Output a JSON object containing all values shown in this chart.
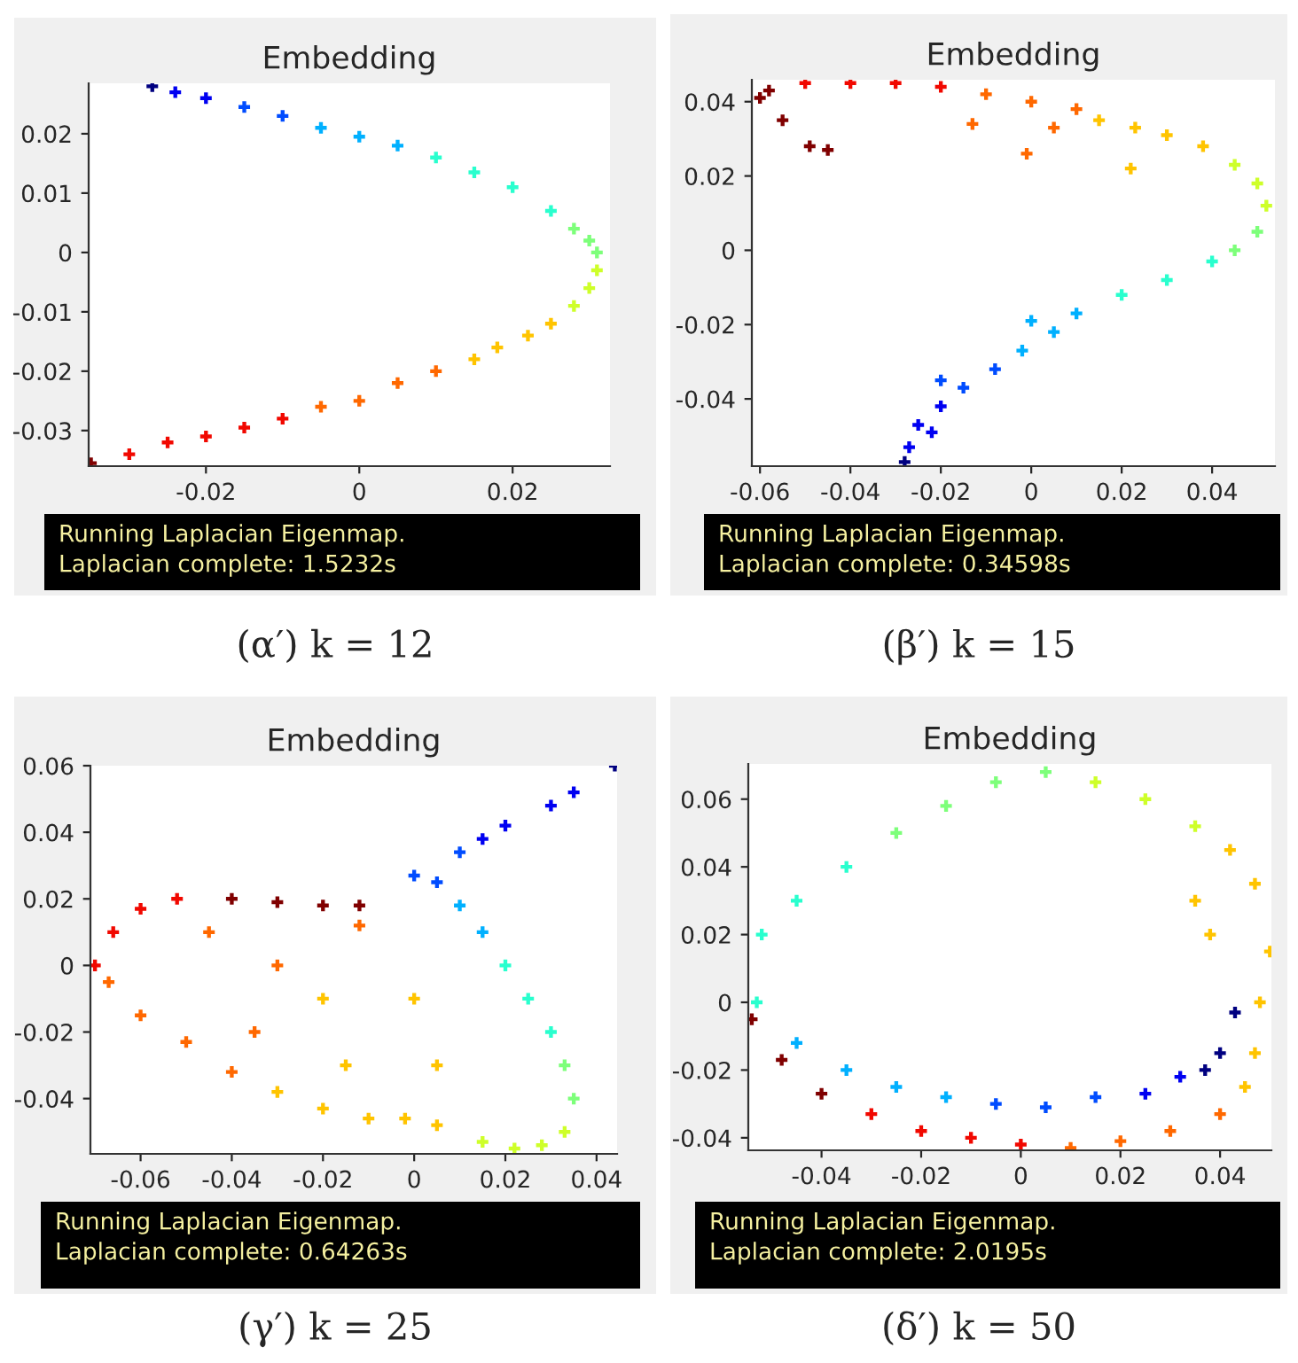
{
  "chart_data": [
    {
      "type": "scatter",
      "title": "Embedding",
      "marker": "cross",
      "xlim": [
        -0.0353,
        0.0327
      ],
      "ylim": [
        -0.036,
        0.0285
      ],
      "xticks": [
        -0.02,
        0,
        0.02
      ],
      "yticks": [
        -0.03,
        -0.02,
        -0.01,
        0,
        0.01,
        0.02
      ],
      "annotations": [
        "Running Laplacian Eigenmap.",
        "Laplacian complete: 1.5232s",
        "(α′) k = 12"
      ],
      "series": [
        {
          "x": [
            -0.027,
            -0.024,
            -0.02,
            -0.015,
            -0.01,
            -0.005,
            0,
            0.005,
            0.01,
            0.015,
            0.02,
            0.025,
            0.028,
            0.03,
            0.031,
            0.031,
            0.03,
            0.028,
            0.025,
            0.022,
            0.018,
            0.015,
            0.01,
            0.005,
            0,
            -0.005,
            -0.01,
            -0.015,
            -0.02,
            -0.025,
            -0.03,
            -0.035
          ],
          "values": [
            0.028,
            0.027,
            0.026,
            0.0245,
            0.023,
            0.021,
            0.0195,
            0.018,
            0.016,
            0.0135,
            0.011,
            0.007,
            0.004,
            0.002,
            0,
            -0.003,
            -0.006,
            -0.009,
            -0.012,
            -0.014,
            -0.016,
            -0.018,
            -0.02,
            -0.022,
            -0.025,
            -0.026,
            -0.028,
            -0.0295,
            -0.031,
            -0.032,
            -0.034,
            -0.0355
          ],
          "colors": [
            "#000080",
            "#0000f1",
            "#0000f1",
            "#004cff",
            "#004cff",
            "#00b0ff",
            "#00b0ff",
            "#00b0ff",
            "#29ffce",
            "#29ffce",
            "#29ffce",
            "#29ffce",
            "#7dff7a",
            "#7dff7a",
            "#7dff7a",
            "#ceff29",
            "#ceff29",
            "#ceff29",
            "#ffc400",
            "#ffc400",
            "#ffc400",
            "#ffc400",
            "#ff6800",
            "#ff6800",
            "#ff6800",
            "#ff6800",
            "#f10800",
            "#f10800",
            "#f10800",
            "#f10800",
            "#f10800",
            "#800000"
          ]
        }
      ]
    },
    {
      "type": "scatter",
      "title": "Embedding",
      "marker": "cross",
      "xlim": [
        -0.0618,
        0.0539
      ],
      "ylim": [
        -0.0581,
        0.0459
      ],
      "xticks": [
        -0.06,
        -0.04,
        -0.02,
        0,
        0.02,
        0.04
      ],
      "yticks": [
        -0.04,
        -0.02,
        0,
        0.02,
        0.04
      ],
      "annotations": [
        "Running Laplacian Eigenmap.",
        "Laplacian complete: 0.34598s",
        "(β′) k = 15"
      ],
      "series": [
        {
          "x": [
            -0.06,
            -0.058,
            -0.055,
            -0.049,
            -0.045,
            -0.05,
            -0.04,
            -0.03,
            -0.02,
            -0.013,
            -0.01,
            0,
            -0.001,
            0.005,
            0.01,
            0.015,
            0.022,
            0.023,
            0.03,
            0.038,
            0.045,
            0.05,
            0.052,
            0.05,
            0.045,
            0.04,
            0.03,
            0.02,
            0.01,
            0,
            0.005,
            -0.002,
            -0.008,
            -0.015,
            -0.02,
            -0.02,
            -0.025,
            -0.027,
            -0.028,
            -0.022
          ],
          "values": [
            0.041,
            0.043,
            0.035,
            0.028,
            0.027,
            0.045,
            0.045,
            0.045,
            0.044,
            0.034,
            0.042,
            0.04,
            0.026,
            0.033,
            0.038,
            0.035,
            0.022,
            0.033,
            0.031,
            0.028,
            0.023,
            0.018,
            0.012,
            0.005,
            0,
            -0.003,
            -0.008,
            -0.012,
            -0.017,
            -0.019,
            -0.022,
            -0.027,
            -0.032,
            -0.037,
            -0.035,
            -0.042,
            -0.047,
            -0.053,
            -0.057,
            -0.049
          ],
          "colors": [
            "#800000",
            "#800000",
            "#800000",
            "#800000",
            "#800000",
            "#f10800",
            "#f10800",
            "#f10800",
            "#f10800",
            "#ff6800",
            "#ff6800",
            "#ff6800",
            "#ff6800",
            "#ff6800",
            "#ff6800",
            "#ffc400",
            "#ffc400",
            "#ffc400",
            "#ffc400",
            "#ffc400",
            "#ceff29",
            "#ceff29",
            "#ceff29",
            "#7dff7a",
            "#7dff7a",
            "#29ffce",
            "#29ffce",
            "#29ffce",
            "#00b0ff",
            "#00b0ff",
            "#00b0ff",
            "#00b0ff",
            "#004cff",
            "#004cff",
            "#004cff",
            "#0000f1",
            "#0000f1",
            "#0000f1",
            "#000080",
            "#0000f1"
          ]
        }
      ]
    },
    {
      "type": "scatter",
      "title": "Embedding",
      "marker": "cross",
      "xlim": [
        -0.071,
        0.0445
      ],
      "ylim": [
        -0.0566,
        0.06
      ],
      "xticks": [
        -0.06,
        -0.04,
        -0.02,
        0,
        0.02,
        0.04
      ],
      "yticks": [
        -0.04,
        -0.02,
        0,
        0.02,
        0.04,
        0.06
      ],
      "annotations": [
        "Running Laplacian Eigenmap.",
        "Laplacian complete: 0.64263s",
        "(γ′) k = 25"
      ],
      "series": [
        {
          "x": [
            0.044,
            0.035,
            0.03,
            0.02,
            0.015,
            0.01,
            0,
            0.005,
            0.01,
            0.015,
            0.02,
            0.025,
            0.03,
            0.033,
            0.035,
            0.033,
            0.028,
            0.022,
            0.015,
            0.005,
            -0.002,
            -0.01,
            -0.02,
            -0.03,
            -0.04,
            -0.05,
            -0.06,
            -0.067,
            -0.07,
            -0.066,
            -0.06,
            -0.052,
            -0.04,
            -0.03,
            -0.02,
            -0.012,
            -0.03,
            -0.02,
            -0.035,
            -0.015,
            0,
            0.005,
            -0.045,
            -0.012
          ],
          "values": [
            0.06,
            0.052,
            0.048,
            0.042,
            0.038,
            0.034,
            0.027,
            0.025,
            0.018,
            0.01,
            0,
            -0.01,
            -0.02,
            -0.03,
            -0.04,
            -0.05,
            -0.054,
            -0.055,
            -0.053,
            -0.048,
            -0.046,
            -0.046,
            -0.043,
            -0.038,
            -0.032,
            -0.023,
            -0.015,
            -0.005,
            0,
            0.01,
            0.017,
            0.02,
            0.02,
            0.019,
            0.018,
            0.018,
            0,
            -0.01,
            -0.02,
            -0.03,
            -0.01,
            -0.03,
            0.01,
            0.012
          ],
          "colors": [
            "#000080",
            "#0000f1",
            "#0000f1",
            "#0000f1",
            "#0000f1",
            "#004cff",
            "#004cff",
            "#004cff",
            "#00b0ff",
            "#00b0ff",
            "#29ffce",
            "#29ffce",
            "#29ffce",
            "#7dff7a",
            "#7dff7a",
            "#ceff29",
            "#ceff29",
            "#ceff29",
            "#ceff29",
            "#ffc400",
            "#ffc400",
            "#ffc400",
            "#ffc400",
            "#ffc400",
            "#ff6800",
            "#ff6800",
            "#ff6800",
            "#ff6800",
            "#f10800",
            "#f10800",
            "#f10800",
            "#f10800",
            "#800000",
            "#800000",
            "#800000",
            "#800000",
            "#ff6800",
            "#ffc400",
            "#ff6800",
            "#ffc400",
            "#ffc400",
            "#ffc400",
            "#ff6800",
            "#ff6800"
          ]
        }
      ]
    },
    {
      "type": "scatter",
      "title": "Embedding",
      "marker": "cross",
      "xlim": [
        -0.0547,
        0.0503
      ],
      "ylim": [
        -0.0437,
        0.0704
      ],
      "xticks": [
        -0.04,
        -0.02,
        0,
        0.02,
        0.04
      ],
      "yticks": [
        -0.04,
        -0.02,
        0,
        0.02,
        0.04,
        0.06
      ],
      "annotations": [
        "Running Laplacian Eigenmap.",
        "Laplacian complete: 2.0195s",
        "(δ′) k = 50"
      ],
      "series": [
        {
          "x": [
            -0.053,
            -0.052,
            -0.045,
            -0.035,
            -0.025,
            -0.015,
            -0.005,
            0.005,
            0.015,
            0.025,
            0.035,
            0.042,
            0.047,
            0.05,
            0.048,
            0.047,
            0.045,
            0.04,
            0.03,
            0.02,
            0.01,
            0,
            -0.01,
            -0.02,
            -0.03,
            -0.04,
            -0.048,
            -0.054,
            -0.045,
            -0.035,
            -0.025,
            -0.015,
            -0.005,
            0.005,
            0.015,
            0.025,
            0.032,
            0.037,
            0.04,
            0.043,
            0.035,
            0.038
          ],
          "values": [
            0,
            0.02,
            0.03,
            0.04,
            0.05,
            0.058,
            0.065,
            0.068,
            0.065,
            0.06,
            0.052,
            0.045,
            0.035,
            0.015,
            0,
            -0.015,
            -0.025,
            -0.033,
            -0.038,
            -0.041,
            -0.043,
            -0.042,
            -0.04,
            -0.038,
            -0.033,
            -0.027,
            -0.017,
            -0.005,
            -0.012,
            -0.02,
            -0.025,
            -0.028,
            -0.03,
            -0.031,
            -0.028,
            -0.027,
            -0.022,
            -0.02,
            -0.015,
            -0.003,
            0.03,
            0.02
          ],
          "colors": [
            "#29ffce",
            "#29ffce",
            "#29ffce",
            "#29ffce",
            "#7dff7a",
            "#7dff7a",
            "#7dff7a",
            "#7dff7a",
            "#ceff29",
            "#ceff29",
            "#ceff29",
            "#ffc400",
            "#ffc400",
            "#ffc400",
            "#ffc400",
            "#ffc400",
            "#ffc400",
            "#ff6800",
            "#ff6800",
            "#ff6800",
            "#ff6800",
            "#f10800",
            "#f10800",
            "#f10800",
            "#f10800",
            "#800000",
            "#800000",
            "#800000",
            "#00b0ff",
            "#00b0ff",
            "#00b0ff",
            "#00b0ff",
            "#004cff",
            "#004cff",
            "#004cff",
            "#0000f1",
            "#0000f1",
            "#000080",
            "#000080",
            "#000080",
            "#ffc400",
            "#ffc400"
          ]
        }
      ]
    }
  ]
}
